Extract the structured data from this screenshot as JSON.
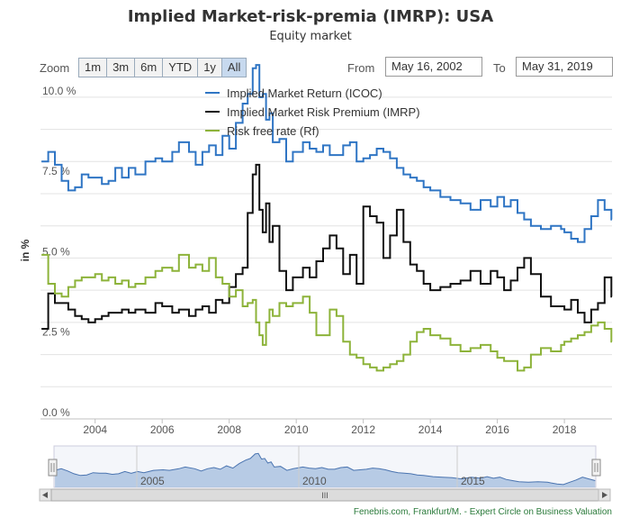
{
  "title": "Implied Market-risk-premia (IMRP): USA",
  "subtitle": "Equity market",
  "zoom": {
    "label": "Zoom",
    "buttons": [
      "1m",
      "3m",
      "6m",
      "YTD",
      "1y",
      "All"
    ],
    "selected": "All"
  },
  "range": {
    "from_label": "From",
    "from_value": "May 16, 2002",
    "to_label": "To",
    "to_value": "May 31, 2019"
  },
  "footer": "Fenebris.com, Frankfurt/M. - Expert Circle on Business Valuation",
  "navigator": {
    "year_labels": [
      "2005",
      "2010",
      "2015"
    ],
    "scrollbar_grip": "III"
  },
  "colors": {
    "icoc": "#2f75c4",
    "imrp": "#111111",
    "rf": "#8db33a",
    "navigator_fill": "#a8c0e0",
    "navigator_line": "#4a74b0"
  },
  "chart_data": {
    "type": "line",
    "title": "Implied Market-risk-premia (IMRP): USA",
    "subtitle": "Equity market",
    "xlabel": "",
    "ylabel": "in %",
    "xlim": [
      2002.37,
      2019.42
    ],
    "ylim": [
      0,
      10.5
    ],
    "x_tick_labels": [
      "2004",
      "2006",
      "2008",
      "2010",
      "2012",
      "2014",
      "2016",
      "2018"
    ],
    "y_tick_labels": [
      "0.0 %",
      "2.5 %",
      "5.0 %",
      "7.5 %",
      "10.0 %"
    ],
    "grid": true,
    "legend_position": "top-center",
    "series": [
      {
        "name": "Implied Market Return (ICOC)",
        "x": [
          2002.4,
          2002.6,
          2002.8,
          2003.0,
          2003.2,
          2003.4,
          2003.6,
          2003.8,
          2004.0,
          2004.2,
          2004.4,
          2004.6,
          2004.8,
          2005.0,
          2005.2,
          2005.5,
          2005.8,
          2006.0,
          2006.3,
          2006.5,
          2006.8,
          2007.0,
          2007.2,
          2007.4,
          2007.6,
          2007.8,
          2008.0,
          2008.2,
          2008.4,
          2008.55,
          2008.7,
          2008.8,
          2008.9,
          2009.0,
          2009.1,
          2009.2,
          2009.3,
          2009.5,
          2009.7,
          2009.9,
          2010.2,
          2010.4,
          2010.6,
          2010.8,
          2011.0,
          2011.2,
          2011.4,
          2011.6,
          2011.8,
          2012.0,
          2012.2,
          2012.4,
          2012.6,
          2012.8,
          2013.0,
          2013.2,
          2013.4,
          2013.6,
          2013.8,
          2014.0,
          2014.3,
          2014.6,
          2014.9,
          2015.2,
          2015.5,
          2015.8,
          2016.0,
          2016.2,
          2016.4,
          2016.6,
          2016.8,
          2017.0,
          2017.3,
          2017.6,
          2017.9,
          2018.0,
          2018.2,
          2018.4,
          2018.6,
          2018.8,
          2019.0,
          2019.2,
          2019.4
        ],
        "values": [
          8.0,
          8.3,
          7.9,
          7.4,
          7.1,
          7.2,
          7.6,
          7.5,
          7.5,
          7.3,
          7.4,
          7.8,
          7.5,
          7.8,
          7.6,
          8.0,
          8.1,
          8.0,
          8.3,
          8.6,
          8.3,
          7.9,
          8.3,
          8.5,
          8.2,
          8.8,
          8.4,
          9.2,
          9.8,
          10.1,
          10.9,
          11.0,
          10.0,
          10.1,
          9.3,
          9.5,
          8.6,
          8.7,
          8.0,
          8.3,
          8.6,
          8.4,
          8.3,
          8.5,
          8.2,
          8.2,
          8.5,
          8.6,
          8.0,
          8.1,
          8.2,
          8.4,
          8.3,
          8.1,
          7.8,
          7.6,
          7.5,
          7.4,
          7.2,
          7.1,
          6.9,
          6.8,
          6.7,
          6.5,
          6.8,
          6.6,
          6.9,
          6.6,
          6.8,
          6.4,
          6.2,
          6.0,
          5.9,
          6.0,
          5.9,
          5.8,
          5.6,
          5.5,
          5.9,
          6.3,
          6.8,
          6.5,
          6.2
        ]
      },
      {
        "name": "Implied Market Risk Premium (IMRP)",
        "x": [
          2002.4,
          2002.6,
          2002.8,
          2003.0,
          2003.2,
          2003.4,
          2003.6,
          2003.8,
          2004.0,
          2004.2,
          2004.4,
          2004.6,
          2004.8,
          2005.0,
          2005.2,
          2005.5,
          2005.8,
          2006.0,
          2006.3,
          2006.5,
          2006.8,
          2007.0,
          2007.2,
          2007.4,
          2007.6,
          2007.8,
          2008.0,
          2008.2,
          2008.4,
          2008.55,
          2008.7,
          2008.8,
          2008.9,
          2009.0,
          2009.1,
          2009.2,
          2009.3,
          2009.5,
          2009.7,
          2009.9,
          2010.2,
          2010.4,
          2010.6,
          2010.8,
          2011.0,
          2011.2,
          2011.4,
          2011.6,
          2011.8,
          2012.0,
          2012.2,
          2012.4,
          2012.6,
          2012.8,
          2013.0,
          2013.2,
          2013.4,
          2013.6,
          2013.8,
          2014.0,
          2014.3,
          2014.6,
          2014.9,
          2015.2,
          2015.5,
          2015.8,
          2016.0,
          2016.2,
          2016.4,
          2016.6,
          2016.8,
          2017.0,
          2017.3,
          2017.6,
          2017.9,
          2018.0,
          2018.2,
          2018.4,
          2018.6,
          2018.8,
          2019.0,
          2019.2,
          2019.4
        ],
        "values": [
          2.8,
          3.9,
          3.6,
          3.6,
          3.4,
          3.2,
          3.1,
          3.0,
          3.1,
          3.2,
          3.3,
          3.3,
          3.4,
          3.3,
          3.4,
          3.3,
          3.6,
          3.5,
          3.3,
          3.4,
          3.2,
          3.4,
          3.5,
          3.3,
          3.7,
          3.6,
          4.1,
          4.5,
          4.7,
          6.4,
          7.6,
          7.9,
          6.5,
          5.8,
          6.7,
          5.5,
          6.0,
          4.6,
          4.0,
          4.4,
          4.7,
          4.4,
          4.9,
          5.3,
          5.7,
          5.3,
          4.5,
          5.1,
          4.2,
          6.6,
          6.3,
          6.1,
          5.0,
          5.7,
          6.5,
          5.5,
          4.8,
          4.6,
          4.2,
          4.0,
          4.1,
          4.2,
          4.3,
          4.6,
          4.2,
          4.6,
          4.4,
          4.0,
          4.3,
          4.7,
          5.0,
          4.5,
          3.8,
          3.5,
          3.5,
          3.4,
          3.7,
          3.3,
          3.0,
          3.4,
          3.6,
          4.4,
          3.8
        ]
      },
      {
        "name": "Risk free rate (Rf)",
        "x": [
          2002.4,
          2002.6,
          2002.8,
          2003.0,
          2003.2,
          2003.4,
          2003.6,
          2003.8,
          2004.0,
          2004.2,
          2004.4,
          2004.6,
          2004.8,
          2005.0,
          2005.2,
          2005.5,
          2005.8,
          2006.0,
          2006.3,
          2006.5,
          2006.8,
          2007.0,
          2007.2,
          2007.4,
          2007.6,
          2007.8,
          2008.0,
          2008.2,
          2008.4,
          2008.55,
          2008.7,
          2008.8,
          2008.9,
          2009.0,
          2009.1,
          2009.2,
          2009.3,
          2009.5,
          2009.7,
          2009.9,
          2010.2,
          2010.4,
          2010.6,
          2010.8,
          2011.0,
          2011.2,
          2011.4,
          2011.6,
          2011.8,
          2012.0,
          2012.2,
          2012.4,
          2012.6,
          2012.8,
          2013.0,
          2013.2,
          2013.4,
          2013.6,
          2013.8,
          2014.0,
          2014.3,
          2014.6,
          2014.9,
          2015.2,
          2015.5,
          2015.8,
          2016.0,
          2016.2,
          2016.4,
          2016.6,
          2016.8,
          2017.0,
          2017.3,
          2017.6,
          2017.9,
          2018.0,
          2018.2,
          2018.4,
          2018.6,
          2018.8,
          2019.0,
          2019.2,
          2019.4
        ],
        "values": [
          5.1,
          4.2,
          3.9,
          3.8,
          4.1,
          4.3,
          4.4,
          4.4,
          4.5,
          4.3,
          4.4,
          4.2,
          4.3,
          4.1,
          4.2,
          4.4,
          4.6,
          4.7,
          4.6,
          5.1,
          4.7,
          4.8,
          4.6,
          5.0,
          4.4,
          4.2,
          3.8,
          4.0,
          3.5,
          3.6,
          3.7,
          3.0,
          2.6,
          2.3,
          3.0,
          3.4,
          3.2,
          3.6,
          3.5,
          3.6,
          3.8,
          3.3,
          2.6,
          2.6,
          3.4,
          3.2,
          2.4,
          2.0,
          1.9,
          1.7,
          1.6,
          1.5,
          1.6,
          1.7,
          1.8,
          2.0,
          2.4,
          2.7,
          2.8,
          2.6,
          2.5,
          2.3,
          2.1,
          2.2,
          2.3,
          2.1,
          1.9,
          1.8,
          1.8,
          1.5,
          1.6,
          2.0,
          2.2,
          2.1,
          2.3,
          2.4,
          2.5,
          2.6,
          2.7,
          2.9,
          3.0,
          2.8,
          2.4
        ]
      }
    ]
  }
}
